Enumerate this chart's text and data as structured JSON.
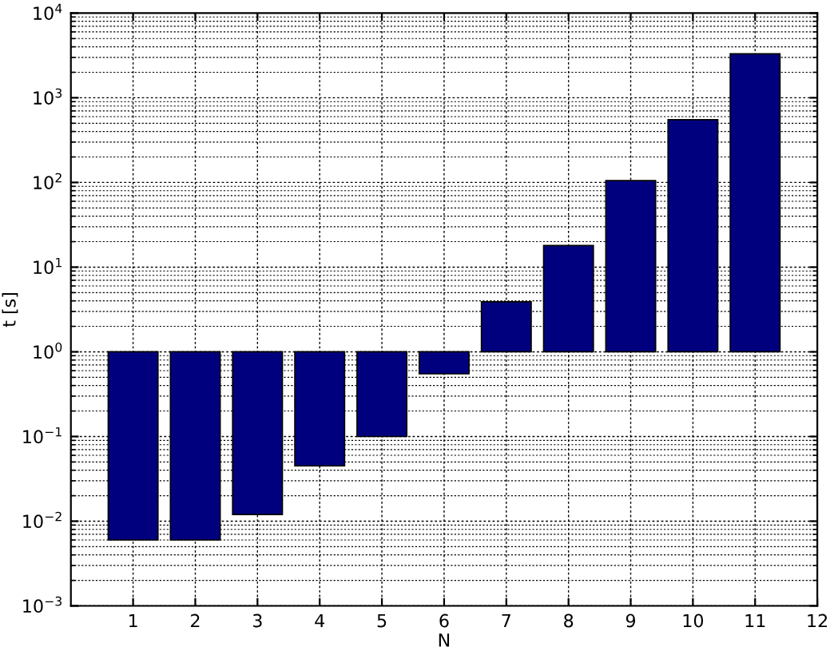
{
  "chart_data": {
    "type": "bar",
    "xlabel": "N",
    "ylabel": "t [s]",
    "x": [
      1,
      2,
      3,
      4,
      5,
      6,
      7,
      8,
      9,
      10,
      11
    ],
    "values": [
      -0.994,
      -0.994,
      -0.988,
      -0.955,
      -0.9,
      -0.45,
      2.9,
      17,
      104,
      549,
      3299
    ],
    "base": [
      1,
      1,
      1,
      1,
      1,
      1,
      1,
      1,
      1,
      1,
      1
    ],
    "color": "#00007f",
    "log": "y",
    "xlim": [
      0,
      12
    ],
    "xticks": [
      1,
      2,
      3,
      4,
      5,
      6,
      7,
      8,
      9,
      10,
      11,
      12
    ],
    "ylim": [
      0.001,
      10000
    ],
    "yticks": [
      {
        "value": 0.001,
        "label": "10$^{−3}$"
      },
      {
        "value": 0.01,
        "label": "10$^{−2}$"
      },
      {
        "value": 0.1,
        "label": "10$^{−1}$"
      },
      {
        "value": 1,
        "label": "10$^{0}$"
      },
      {
        "value": 10,
        "label": "10$^{1}$"
      },
      {
        "value": 100,
        "label": "10$^{2}$"
      },
      {
        "value": 1000,
        "label": "10$^{3}$"
      },
      {
        "value": 10000,
        "label": "10$^{4}$"
      }
    ],
    "grid": true
  }
}
